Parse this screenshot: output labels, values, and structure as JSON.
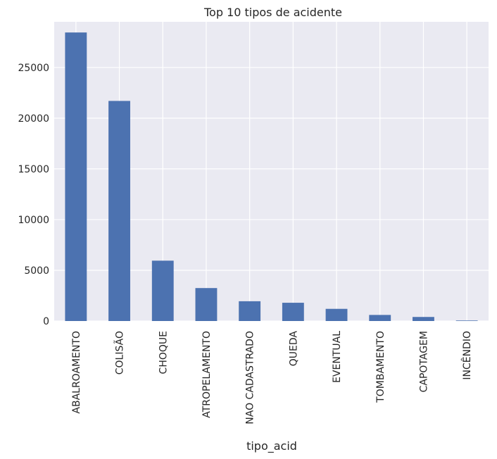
{
  "chart_data": {
    "type": "bar",
    "title": "Top 10 tipos de acidente",
    "xlabel": "tipo_acid",
    "ylabel": "",
    "categories": [
      "ABALROAMENTO",
      "COLISÃO",
      "CHOQUE",
      "ATROPELAMENTO",
      "NAO CADASTRADO",
      "QUEDA",
      "EVENTUAL",
      "TOMBAMENTO",
      "CAPOTAGEM",
      "INCÊNDIO"
    ],
    "values": [
      28450,
      21700,
      5950,
      3250,
      1950,
      1800,
      1200,
      600,
      400,
      50
    ],
    "ylim": [
      0,
      29500
    ],
    "yticks": [
      0,
      5000,
      10000,
      15000,
      20000,
      25000
    ],
    "ytick_labels": [
      "0",
      "5000",
      "10000",
      "15000",
      "20000",
      "25000"
    ],
    "grid": true,
    "colors": {
      "bar": "#4c72b0",
      "background": "#eaeaf2",
      "grid": "#ffffff",
      "text": "#262626"
    }
  }
}
